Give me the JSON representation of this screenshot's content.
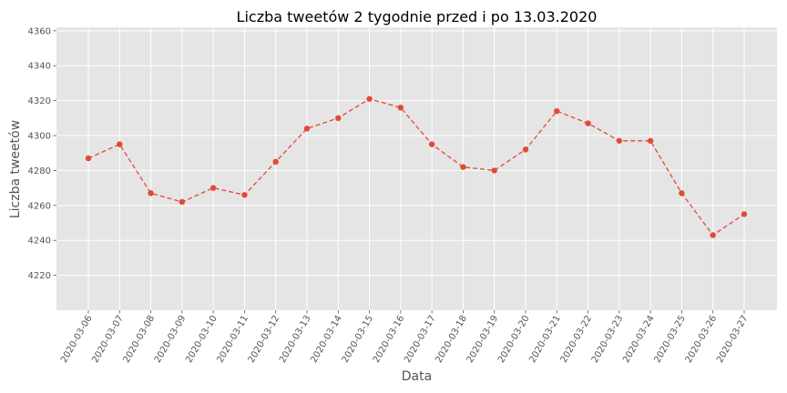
{
  "chart_data": {
    "type": "line",
    "title": "Liczba tweetów 2 tygodnie przed i po 13.03.2020",
    "xlabel": "Data",
    "ylabel": "Liczba tweetów",
    "x": [
      "2020-03-06",
      "2020-03-07",
      "2020-03-08",
      "2020-03-09",
      "2020-03-10",
      "2020-03-11",
      "2020-03-12",
      "2020-03-13",
      "2020-03-14",
      "2020-03-15",
      "2020-03-16",
      "2020-03-17",
      "2020-03-18",
      "2020-03-19",
      "2020-03-20",
      "2020-03-21",
      "2020-03-22",
      "2020-03-23",
      "2020-03-24",
      "2020-03-25",
      "2020-03-26",
      "2020-03-27"
    ],
    "series": [
      {
        "values": [
          4287,
          4295,
          4267,
          4262,
          4270,
          4266,
          4285,
          4304,
          4310,
          4321,
          4316,
          4295,
          4282,
          4280,
          4292,
          4314,
          4307,
          4297,
          4297,
          4267,
          4243,
          4255
        ]
      }
    ],
    "ylim": [
      4200,
      4362
    ],
    "yticks": [
      4220,
      4240,
      4260,
      4280,
      4300,
      4320,
      4340,
      4360
    ],
    "grid": true,
    "line_style": "dashed",
    "marker": "circle",
    "colors": {
      "line": "#e24a33",
      "plot_background": "#e5e5e5",
      "grid": "#ffffff"
    }
  }
}
